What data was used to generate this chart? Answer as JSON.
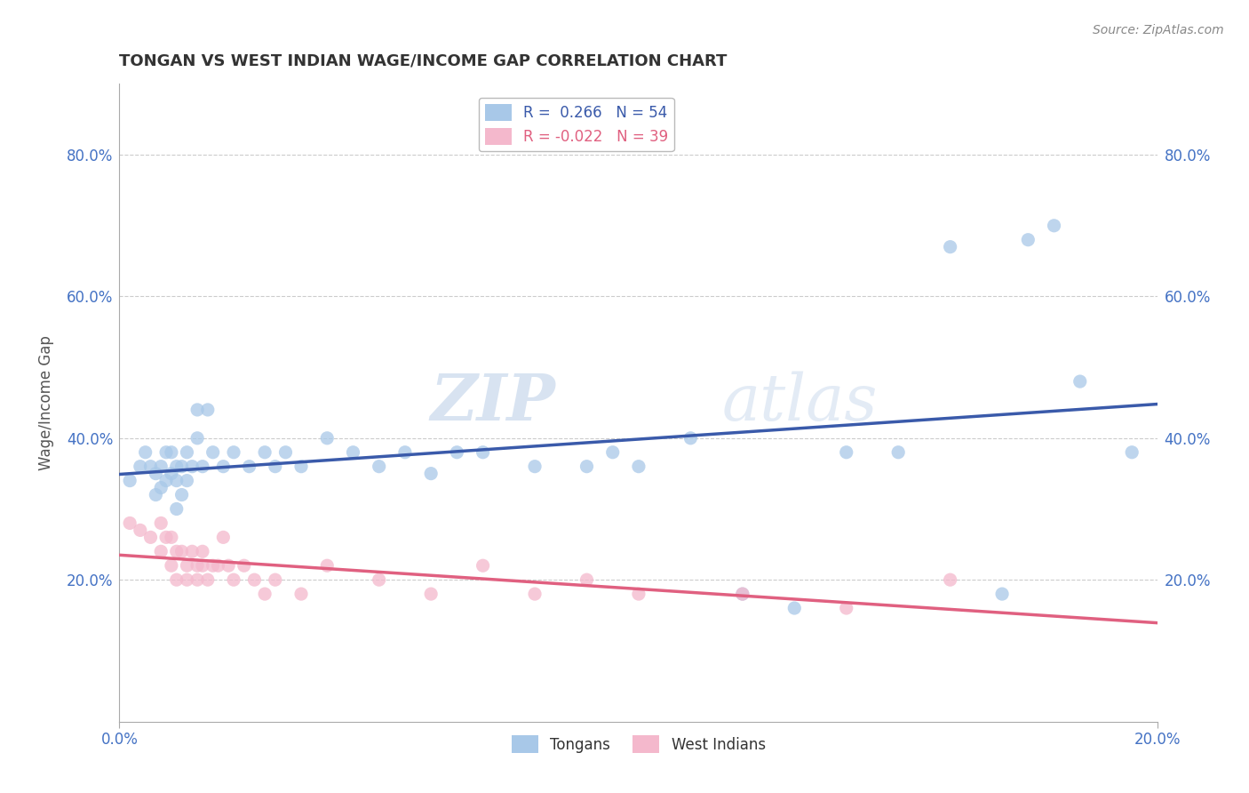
{
  "title": "TONGAN VS WEST INDIAN WAGE/INCOME GAP CORRELATION CHART",
  "source": "Source: ZipAtlas.com",
  "ylabel": "Wage/Income Gap",
  "xlabel": "",
  "xlim": [
    0.0,
    0.2
  ],
  "ylim": [
    0.0,
    0.9
  ],
  "yticks": [
    0.2,
    0.4,
    0.6,
    0.8
  ],
  "ytick_labels": [
    "20.0%",
    "40.0%",
    "60.0%",
    "80.0%"
  ],
  "xticks": [
    0.0,
    0.2
  ],
  "xtick_labels": [
    "0.0%",
    "20.0%"
  ],
  "legend_r_tongan": "0.266",
  "legend_n_tongan": "54",
  "legend_r_westindian": "-0.022",
  "legend_n_westindian": "39",
  "tongan_color": "#a8c8e8",
  "westindian_color": "#f4b8cc",
  "tongan_line_color": "#3a5aaa",
  "westindian_line_color": "#e06080",
  "background_color": "#ffffff",
  "grid_color": "#cccccc",
  "watermark_zip": "ZIP",
  "watermark_atlas": "atlas",
  "tongan_x": [
    0.002,
    0.004,
    0.005,
    0.006,
    0.007,
    0.007,
    0.008,
    0.008,
    0.009,
    0.009,
    0.01,
    0.01,
    0.011,
    0.011,
    0.011,
    0.012,
    0.012,
    0.013,
    0.013,
    0.014,
    0.015,
    0.015,
    0.016,
    0.017,
    0.018,
    0.02,
    0.022,
    0.025,
    0.028,
    0.03,
    0.032,
    0.035,
    0.04,
    0.045,
    0.05,
    0.055,
    0.06,
    0.065,
    0.07,
    0.08,
    0.09,
    0.095,
    0.1,
    0.11,
    0.12,
    0.13,
    0.14,
    0.15,
    0.16,
    0.17,
    0.175,
    0.18,
    0.185,
    0.195
  ],
  "tongan_y": [
    0.34,
    0.36,
    0.38,
    0.36,
    0.35,
    0.32,
    0.36,
    0.33,
    0.38,
    0.34,
    0.35,
    0.38,
    0.36,
    0.34,
    0.3,
    0.36,
    0.32,
    0.38,
    0.34,
    0.36,
    0.44,
    0.4,
    0.36,
    0.44,
    0.38,
    0.36,
    0.38,
    0.36,
    0.38,
    0.36,
    0.38,
    0.36,
    0.4,
    0.38,
    0.36,
    0.38,
    0.35,
    0.38,
    0.38,
    0.36,
    0.36,
    0.38,
    0.36,
    0.4,
    0.18,
    0.16,
    0.38,
    0.38,
    0.67,
    0.18,
    0.68,
    0.7,
    0.48,
    0.38
  ],
  "westindian_x": [
    0.002,
    0.004,
    0.006,
    0.008,
    0.008,
    0.009,
    0.01,
    0.01,
    0.011,
    0.011,
    0.012,
    0.013,
    0.013,
    0.014,
    0.015,
    0.015,
    0.016,
    0.016,
    0.017,
    0.018,
    0.019,
    0.02,
    0.021,
    0.022,
    0.024,
    0.026,
    0.028,
    0.03,
    0.035,
    0.04,
    0.05,
    0.06,
    0.07,
    0.08,
    0.09,
    0.1,
    0.12,
    0.14,
    0.16
  ],
  "westindian_y": [
    0.28,
    0.27,
    0.26,
    0.28,
    0.24,
    0.26,
    0.22,
    0.26,
    0.24,
    0.2,
    0.24,
    0.22,
    0.2,
    0.24,
    0.22,
    0.2,
    0.22,
    0.24,
    0.2,
    0.22,
    0.22,
    0.26,
    0.22,
    0.2,
    0.22,
    0.2,
    0.18,
    0.2,
    0.18,
    0.22,
    0.2,
    0.18,
    0.22,
    0.18,
    0.2,
    0.18,
    0.18,
    0.16,
    0.2
  ]
}
